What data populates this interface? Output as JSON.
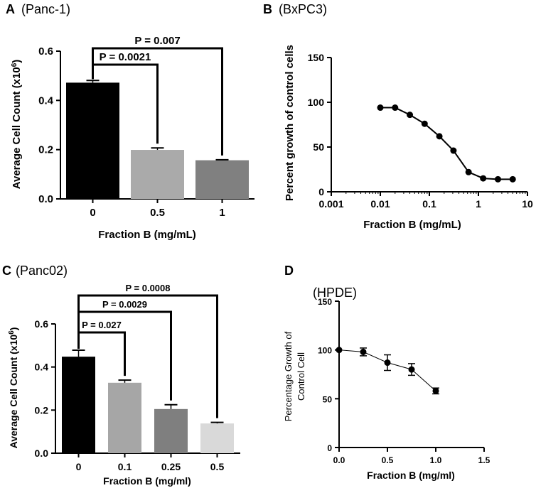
{
  "chart_data": [
    {
      "panel": "A",
      "type": "bar",
      "subtitle": "(Panc-1)",
      "categories": [
        "0",
        "0.5",
        "1"
      ],
      "values": [
        0.472,
        0.199,
        0.157
      ],
      "errors": [
        0.009,
        0.008,
        0.002
      ],
      "colors": [
        "#000000",
        "#aaaaaa",
        "#808080"
      ],
      "xlabel": "Fraction  B (mg/mL)",
      "ylabel_prefix": "Average Cell Count (x10",
      "ylabel_exp": "6",
      "ylabel_suffix": ")",
      "ylim": [
        0,
        0.6
      ],
      "yticks": [
        "0.0",
        "0.2",
        "0.4",
        "0.6"
      ],
      "ytick_values": [
        0,
        0.2,
        0.4,
        0.6
      ],
      "significance": [
        {
          "from": 0,
          "to": 1,
          "label": "P = 0.0021"
        },
        {
          "from": 0,
          "to": 2,
          "label": "P = 0.007"
        }
      ]
    },
    {
      "panel": "B",
      "type": "line",
      "subtitle": "(BxPC3)",
      "xscale": "log",
      "x": [
        0.01,
        0.02,
        0.04,
        0.08,
        0.16,
        0.31,
        0.63,
        1.25,
        2.5,
        5
      ],
      "y": [
        94,
        94,
        86,
        76,
        62,
        46,
        22,
        15,
        14,
        14
      ],
      "xlabel": "Fraction  B (mg/mL)",
      "ylabel": "Percent growth of control cells",
      "xlim": [
        0.001,
        10
      ],
      "ylim": [
        0,
        150
      ],
      "xticks": [
        "0.001",
        "0.01",
        "0.1",
        "1",
        "10"
      ],
      "xtick_values": [
        0.001,
        0.01,
        0.1,
        1,
        10
      ],
      "yticks": [
        "0",
        "50",
        "100",
        "150"
      ],
      "ytick_values": [
        0,
        50,
        100,
        150
      ]
    },
    {
      "panel": "C",
      "type": "bar",
      "subtitle": "(Panc02)",
      "categories": [
        "0",
        "0.1",
        "0.25",
        "0.5"
      ],
      "values": [
        0.448,
        0.327,
        0.205,
        0.138
      ],
      "errors": [
        0.03,
        0.012,
        0.02,
        0.005
      ],
      "colors": [
        "#000000",
        "#a6a6a6",
        "#7f7f7f",
        "#d9d9d9"
      ],
      "xlabel": "Fraction B (mg/ml)",
      "ylabel_prefix": "Average  Cell Count  (x10",
      "ylabel_exp": "6",
      "ylabel_suffix": ")",
      "ylim": [
        0,
        0.6
      ],
      "yticks": [
        "0.0",
        "0.2",
        "0.4",
        "0.6"
      ],
      "ytick_values": [
        0,
        0.2,
        0.4,
        0.6
      ],
      "significance": [
        {
          "from": 0,
          "to": 1,
          "label": "P = 0.027"
        },
        {
          "from": 0,
          "to": 2,
          "label": "P = 0.0029"
        },
        {
          "from": 0,
          "to": 3,
          "label": "P = 0.0008"
        }
      ]
    },
    {
      "panel": "D",
      "type": "line",
      "subtitle": "(HPDE)",
      "x": [
        0,
        0.25,
        0.5,
        0.75,
        1.0
      ],
      "y": [
        100,
        98,
        87,
        80,
        58
      ],
      "errors": [
        0,
        4,
        8,
        6,
        3
      ],
      "xlabel": "Fraction B (mg/ml)",
      "ylabel_line1": "Percentage  Growth of",
      "ylabel_line2": "Control Cell",
      "xlim": [
        0,
        1.5
      ],
      "ylim": [
        0,
        150
      ],
      "xticks": [
        "0.0",
        "0.5",
        "1.0",
        "1.5"
      ],
      "xtick_values": [
        0,
        0.5,
        1.0,
        1.5
      ],
      "yticks": [
        "0",
        "50",
        "100",
        "150"
      ],
      "ytick_values": [
        0,
        50,
        100,
        150
      ]
    }
  ]
}
